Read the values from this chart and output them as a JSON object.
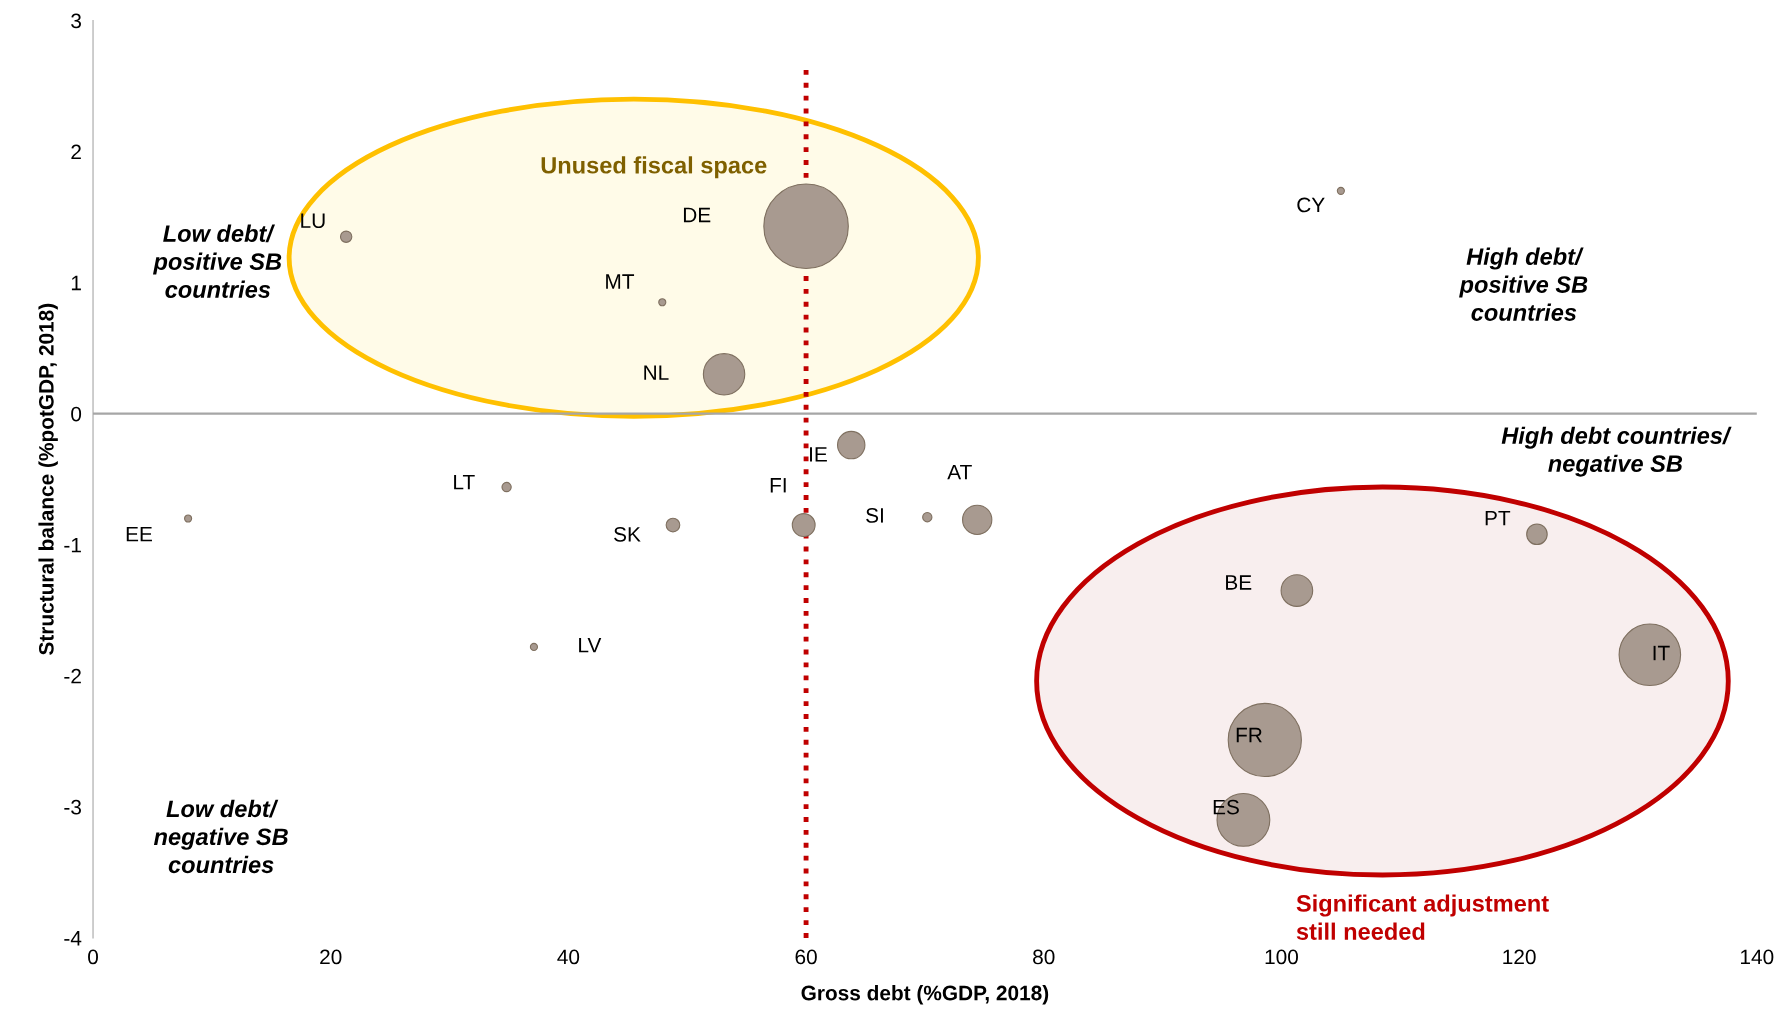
{
  "chart_data": {
    "type": "bubble",
    "xlabel": "Gross debt (%GDP, 2018)",
    "ylabel": "Structural balance (%potGDP, 2018)",
    "xlim": [
      0,
      140
    ],
    "xticks": [
      0,
      20,
      40,
      60,
      80,
      100,
      120,
      140
    ],
    "ylim": [
      -4,
      3
    ],
    "yticks": [
      -4,
      -3,
      -2,
      -1,
      0,
      1,
      2,
      3
    ],
    "grid": false,
    "series": [
      {
        "name": "EE",
        "color": "#a89a90",
        "x": [
          8.0
        ],
        "values": [
          -0.8
        ],
        "sizes": [
          0.007
        ]
      },
      {
        "name": "LU",
        "color": "#a89a90",
        "x": [
          21.3
        ],
        "values": [
          1.35
        ],
        "sizes": [
          0.018
        ]
      },
      {
        "name": "LT",
        "color": "#a89a90",
        "x": [
          34.8
        ],
        "values": [
          -0.56
        ],
        "sizes": [
          0.012
        ]
      },
      {
        "name": "LV",
        "color": "#a89a90",
        "x": [
          37.1
        ],
        "values": [
          -1.78
        ],
        "sizes": [
          0.007
        ]
      },
      {
        "name": "MT",
        "color": "#a89a90",
        "x": [
          47.9
        ],
        "values": [
          0.85
        ],
        "sizes": [
          0.007
        ]
      },
      {
        "name": "SK",
        "color": "#a89a90",
        "x": [
          48.8
        ],
        "values": [
          -0.85
        ],
        "sizes": [
          0.026
        ]
      },
      {
        "name": "NL",
        "color": "#a89a90",
        "x": [
          53.1
        ],
        "values": [
          0.3
        ],
        "sizes": [
          0.24
        ]
      },
      {
        "name": "DE",
        "color": "#a89a90",
        "x": [
          60.0
        ],
        "values": [
          1.43
        ],
        "sizes": [
          1
        ]
      },
      {
        "name": "FI",
        "color": "#a89a90",
        "x": [
          59.8
        ],
        "values": [
          -0.85
        ],
        "sizes": [
          0.073
        ]
      },
      {
        "name": "IE",
        "color": "#a89a90",
        "x": [
          63.8
        ],
        "values": [
          -0.24
        ],
        "sizes": [
          0.105
        ]
      },
      {
        "name": "SI",
        "color": "#a89a90",
        "x": [
          70.2
        ],
        "values": [
          -0.79
        ],
        "sizes": [
          0.012
        ]
      },
      {
        "name": "AT",
        "color": "#a89a90",
        "x": [
          74.4
        ],
        "values": [
          -0.81
        ],
        "sizes": [
          0.12
        ]
      },
      {
        "name": "CY",
        "color": "#a89a90",
        "x": [
          105.0
        ],
        "values": [
          1.7
        ],
        "sizes": [
          0.007
        ]
      },
      {
        "name": "BE",
        "color": "#a89a90",
        "x": [
          101.3
        ],
        "values": [
          -1.35
        ],
        "sizes": [
          0.14
        ]
      },
      {
        "name": "PT",
        "color": "#a89a90",
        "x": [
          121.5
        ],
        "values": [
          -0.92
        ],
        "sizes": [
          0.059
        ]
      },
      {
        "name": "IT",
        "color": "#a89a90",
        "x": [
          131.0
        ],
        "values": [
          -1.84
        ],
        "sizes": [
          0.53
        ]
      },
      {
        "name": "FR",
        "color": "#a89a90",
        "x": [
          98.6
        ],
        "values": [
          -2.49
        ],
        "sizes": [
          0.75
        ]
      },
      {
        "name": "ES",
        "color": "#a89a90",
        "x": [
          96.8
        ],
        "values": [
          -3.1
        ],
        "sizes": [
          0.39
        ]
      }
    ],
    "ref_lines": [
      {
        "axis": "x",
        "value": 60,
        "color": "#c00000",
        "line_style": "dotted"
      },
      {
        "axis": "y",
        "value": 0,
        "color": "#a6a6a6",
        "line_style": "solid"
      }
    ],
    "annotations": [
      "Unused fiscal space",
      "Significant adjustment\nstill needed",
      "Low debt/\npositive SB\ncountries",
      "High debt/\npositive SB\ncountries",
      "High debt countries/\nnegative SB",
      "Low debt/\nnegative SB\ncountries"
    ]
  }
}
